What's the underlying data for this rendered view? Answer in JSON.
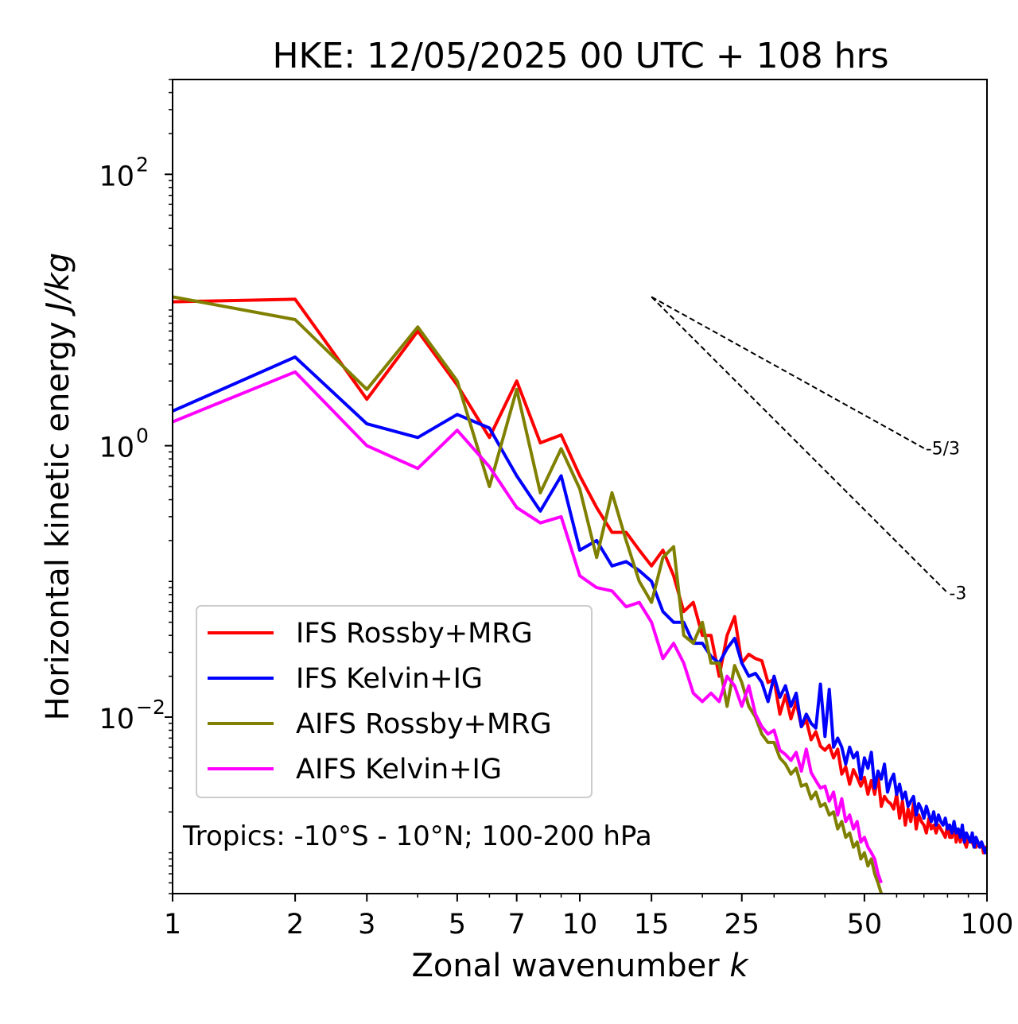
{
  "chart_data": {
    "type": "line",
    "title": "HKE: 12/05/2025 00 UTC + 108 hrs",
    "xlabel": "Zonal wavenumber",
    "xlabel_symbol": "k",
    "ylabel": "Horizontal kinetic energy",
    "ylabel_units": "J/kg",
    "xscale": "log",
    "yscale": "log",
    "xlim": [
      1,
      100
    ],
    "ylim": [
      0.0005,
      500
    ],
    "x_ticks": [
      1,
      2,
      3,
      5,
      7,
      10,
      15,
      25,
      50,
      100
    ],
    "x_tick_labels": [
      "1",
      "2",
      "3",
      "5",
      "7",
      "10",
      "15",
      "25",
      "50",
      "100"
    ],
    "y_ticks": [
      0.01,
      1,
      100
    ],
    "y_tick_labels": [
      {
        "base": "10",
        "exp": "−2"
      },
      {
        "base": "10",
        "exp": "0"
      },
      {
        "base": "10",
        "exp": "2"
      }
    ],
    "legend_position": "lower-left",
    "annotation": "Tropics: -10°S - 10°N; 100-200 hPa",
    "reference_lines": [
      {
        "label": "-5/3",
        "slope": -1.6667,
        "x_start": 15,
        "x_end": 70,
        "y_start": 12.5
      },
      {
        "label": "-3",
        "slope": -3,
        "x_start": 15,
        "x_end": 80,
        "y_start": 12.5
      }
    ],
    "series": [
      {
        "name": "IFS Rossby+MRG",
        "color": "#ff0000",
        "values": [
          11.5,
          12.0,
          2.2,
          7.0,
          2.8,
          1.15,
          3.0,
          1.05,
          1.2,
          0.6,
          0.35,
          0.23,
          0.23,
          0.17,
          0.13,
          0.17,
          0.11,
          0.06,
          0.07,
          0.04,
          0.04,
          0.02,
          0.04,
          0.055,
          0.025,
          0.029,
          0.027,
          0.026,
          0.018,
          0.019,
          0.0105,
          0.0145,
          0.0097,
          0.013,
          0.0085,
          0.0095,
          0.0068,
          0.0078,
          0.0061,
          0.0057,
          0.0062,
          0.005,
          0.0058,
          0.0038,
          0.0043,
          0.0032,
          0.0041,
          0.0036,
          0.0031,
          0.0036,
          0.0027,
          0.0034,
          0.0027,
          0.0037,
          0.0022,
          0.0026,
          0.0024,
          0.0023,
          0.0021,
          0.0027,
          0.0018,
          0.0024,
          0.0016,
          0.0021,
          0.0017,
          0.0023,
          0.0015,
          0.0019,
          0.0017,
          0.0016,
          0.0014,
          0.0018,
          0.0015,
          0.0016,
          0.0014,
          0.0016,
          0.0015,
          0.0014,
          0.0013,
          0.0016,
          0.0013,
          0.0013,
          0.0016,
          0.0012,
          0.0014,
          0.0012,
          0.0014,
          0.0012,
          0.0011,
          0.0013,
          0.0012,
          0.0012,
          0.0011,
          0.0011,
          0.0012,
          0.0011,
          0.0012,
          0.001,
          0.0011,
          0.001
        ]
      },
      {
        "name": "IFS Kelvin+IG",
        "color": "#0000ff",
        "values": [
          1.8,
          4.5,
          1.45,
          1.15,
          1.7,
          1.35,
          0.6,
          0.33,
          0.6,
          0.17,
          0.2,
          0.13,
          0.14,
          0.12,
          0.1,
          0.06,
          0.05,
          0.05,
          0.035,
          0.035,
          0.028,
          0.025,
          0.032,
          0.038,
          0.025,
          0.02,
          0.021,
          0.018,
          0.013,
          0.02,
          0.014,
          0.017,
          0.012,
          0.015,
          0.0085,
          0.0105,
          0.009,
          0.0083,
          0.0175,
          0.0072,
          0.016,
          0.006,
          0.007,
          0.006,
          0.0045,
          0.006,
          0.005,
          0.0055,
          0.0035,
          0.005,
          0.0042,
          0.0055,
          0.003,
          0.004,
          0.0035,
          0.0045,
          0.0028,
          0.0034,
          0.0038,
          0.0027,
          0.0032,
          0.0025,
          0.0028,
          0.0022,
          0.0024,
          0.0026,
          0.0019,
          0.0023,
          0.0021,
          0.0018,
          0.0022,
          0.0019,
          0.0017,
          0.002,
          0.0016,
          0.0019,
          0.0017,
          0.0016,
          0.0018,
          0.0015,
          0.0016,
          0.0014,
          0.0017,
          0.0014,
          0.0015,
          0.0013,
          0.0016,
          0.0012,
          0.0014,
          0.0013,
          0.0012,
          0.0014,
          0.0011,
          0.0013,
          0.0012,
          0.0011,
          0.0012,
          0.0011,
          0.001,
          0.0011
        ]
      },
      {
        "name": "AIFS Rossby+MRG",
        "color": "#808000",
        "values": [
          12.5,
          8.5,
          2.6,
          7.5,
          3.0,
          0.5,
          2.6,
          0.45,
          0.95,
          0.48,
          0.15,
          0.45,
          0.2,
          0.1,
          0.07,
          0.15,
          0.18,
          0.04,
          0.035,
          0.05,
          0.025,
          0.025,
          0.012,
          0.024,
          0.018,
          0.012,
          0.01,
          0.0075,
          0.0065,
          0.0065,
          0.005,
          0.0045,
          0.0038,
          0.0042,
          0.0031,
          0.0032,
          0.0025,
          0.0028,
          0.0022,
          0.0023,
          0.0019,
          0.002,
          0.0015,
          0.0017,
          0.0013,
          0.0014,
          0.0011,
          0.0012,
          0.0009,
          0.001,
          0.0008,
          0.0009,
          0.0007,
          0.0006,
          0.0005
        ]
      },
      {
        "name": "AIFS Kelvin+IG",
        "color": "#ff00ff",
        "values": [
          1.5,
          3.5,
          1.0,
          0.68,
          1.3,
          0.7,
          0.35,
          0.27,
          0.3,
          0.11,
          0.09,
          0.085,
          0.065,
          0.07,
          0.05,
          0.027,
          0.035,
          0.025,
          0.015,
          0.013,
          0.015,
          0.013,
          0.02,
          0.017,
          0.012,
          0.017,
          0.0105,
          0.0085,
          0.0075,
          0.008,
          0.0057,
          0.0053,
          0.0048,
          0.0055,
          0.004,
          0.0058,
          0.0039,
          0.0034,
          0.003,
          0.0031,
          0.0024,
          0.0028,
          0.0019,
          0.0025,
          0.0017,
          0.0019,
          0.0015,
          0.0017,
          0.0012,
          0.0013,
          0.0011,
          0.001,
          0.0009,
          0.0007,
          0.0006
        ]
      }
    ]
  }
}
